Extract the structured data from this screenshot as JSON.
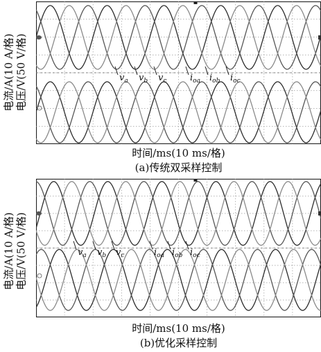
{
  "chart_data": [
    {
      "type": "line",
      "panel_label": "(a)传统双采样控制",
      "xlabel": "时间/ms(10 ms/格)",
      "ylabel_lines": [
        "电流/A(10 A/格)",
        "电压/V(50 V/格)"
      ],
      "grid": true,
      "time_divisions": 10,
      "ms_per_div": 10,
      "series": [
        {
          "name": "v_a",
          "group": "voltage",
          "phase": "a",
          "color": "#2b2b2b"
        },
        {
          "name": "v_b",
          "group": "voltage",
          "phase": "b",
          "color": "#555555"
        },
        {
          "name": "v_c",
          "group": "voltage",
          "phase": "c",
          "color": "#8a8a8a"
        },
        {
          "name": "i_oa",
          "group": "current",
          "phase": "a",
          "color": "#2b2b2b"
        },
        {
          "name": "i_ob",
          "group": "current",
          "phase": "b",
          "color": "#555555"
        },
        {
          "name": "i_oc",
          "group": "current",
          "phase": "c",
          "color": "#8a8a8a"
        }
      ],
      "labels": [
        {
          "main": "v",
          "sub": "a"
        },
        {
          "main": "v",
          "sub": "b"
        },
        {
          "main": "v",
          "sub": "c"
        },
        {
          "main": "i",
          "sub": "oa"
        },
        {
          "main": "i",
          "sub": "ob"
        },
        {
          "main": "i",
          "sub": "oc"
        }
      ]
    },
    {
      "type": "line",
      "panel_label": "(b)优化采样控制",
      "xlabel": "时间/ms(10 ms/格)",
      "ylabel_lines": [
        "电流/A(10 A/格)",
        "电压/V(50 V/格)"
      ],
      "grid": true,
      "time_divisions": 10,
      "ms_per_div": 10,
      "series": [
        {
          "name": "v_a",
          "group": "voltage",
          "phase": "a",
          "color": "#2b2b2b"
        },
        {
          "name": "v_b",
          "group": "voltage",
          "phase": "b",
          "color": "#555555"
        },
        {
          "name": "v_c",
          "group": "voltage",
          "phase": "c",
          "color": "#8a8a8a"
        },
        {
          "name": "i_oa",
          "group": "current",
          "phase": "a",
          "color": "#2b2b2b"
        },
        {
          "name": "i_ob",
          "group": "current",
          "phase": "b",
          "color": "#555555"
        },
        {
          "name": "i_oc",
          "group": "current",
          "phase": "c",
          "color": "#8a8a8a"
        }
      ],
      "labels": [
        {
          "main": "v",
          "sub": "a"
        },
        {
          "main": "v",
          "sub": "b"
        },
        {
          "main": "v",
          "sub": "c"
        },
        {
          "main": "i",
          "sub": "oa"
        },
        {
          "main": "i",
          "sub": "ob"
        },
        {
          "main": "i",
          "sub": "oc"
        }
      ]
    }
  ]
}
